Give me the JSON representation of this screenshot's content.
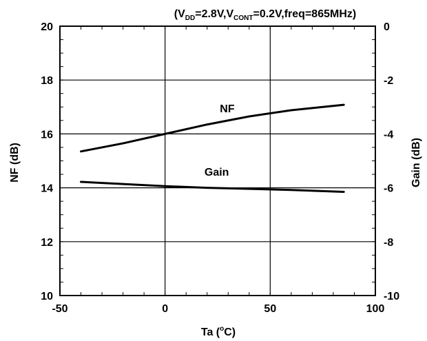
{
  "chart_data": {
    "type": "line",
    "title_parts": {
      "p1": "(V",
      "sub1": "DD",
      "p2": "=2.8V,V",
      "sub2": "CONT",
      "p3": "=0.2V,freq=865MHz)"
    },
    "xlabel_parts": {
      "p1": "Ta (",
      "sup": "o",
      "p2": "C)"
    },
    "ylabel_left": "NF (dB)",
    "ylabel_right": "Gain (dB)",
    "xlim": [
      -50,
      100
    ],
    "ylim_left": [
      10,
      20
    ],
    "ylim_right": [
      -10,
      0
    ],
    "x_ticks": [
      "-50",
      "0",
      "50",
      "100"
    ],
    "y_left_ticks": [
      "10",
      "12",
      "14",
      "16",
      "18",
      "20"
    ],
    "y_right_ticks": [
      "-10",
      "-8",
      "-6",
      "-4",
      "-2",
      "0"
    ],
    "grid": "major",
    "series": [
      {
        "name": "NF",
        "axis": "left",
        "x": [
          -40,
          -20,
          0,
          20,
          40,
          60,
          85
        ],
        "y": [
          15.35,
          15.65,
          16.0,
          16.35,
          16.65,
          16.88,
          17.08
        ]
      },
      {
        "name": "Gain",
        "axis": "right",
        "x": [
          -40,
          -20,
          0,
          20,
          40,
          60,
          85
        ],
        "y": [
          -5.78,
          -5.86,
          -5.94,
          -6.0,
          -6.04,
          -6.08,
          -6.15
        ]
      }
    ],
    "annotations": [
      {
        "text": "NF",
        "x": 5,
        "y": 16.8,
        "axis": "left"
      },
      {
        "text": "Gain",
        "x": 0,
        "y": -5.55,
        "axis": "right"
      }
    ]
  }
}
